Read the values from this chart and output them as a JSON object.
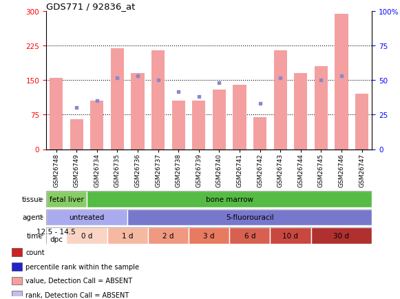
{
  "title": "GDS771 / 92836_at",
  "samples": [
    "GSM26748",
    "GSM26749",
    "GSM26734",
    "GSM26735",
    "GSM26736",
    "GSM26737",
    "GSM26738",
    "GSM26739",
    "GSM26740",
    "GSM26741",
    "GSM26742",
    "GSM26743",
    "GSM26744",
    "GSM26745",
    "GSM26746",
    "GSM26747"
  ],
  "bar_values": [
    155,
    65,
    105,
    220,
    165,
    215,
    105,
    105,
    130,
    140,
    70,
    215,
    165,
    180,
    295,
    120
  ],
  "dot_values": [
    null,
    90,
    105,
    155,
    160,
    150,
    125,
    115,
    145,
    null,
    100,
    155,
    null,
    150,
    160,
    null
  ],
  "bar_color": "#f4a0a0",
  "dot_color": "#8888cc",
  "ylim_left": [
    0,
    300
  ],
  "ylim_right": [
    0,
    100
  ],
  "yticks_left": [
    0,
    75,
    150,
    225,
    300
  ],
  "yticks_right": [
    0,
    25,
    50,
    75,
    100
  ],
  "ytick_labels_right": [
    "0",
    "25",
    "50",
    "75",
    "100%"
  ],
  "tissue_groups": [
    {
      "label": "fetal liver",
      "start": 0,
      "end": 2,
      "color": "#88cc66"
    },
    {
      "label": "bone marrow",
      "start": 2,
      "end": 16,
      "color": "#55bb44"
    }
  ],
  "agent_groups": [
    {
      "label": "untreated",
      "start": 0,
      "end": 4,
      "color": "#aaaaee"
    },
    {
      "label": "5-fluorouracil",
      "start": 4,
      "end": 16,
      "color": "#7777cc"
    }
  ],
  "time_groups": [
    {
      "label": "12.5 - 14.5\ndpc",
      "start": 0,
      "end": 1,
      "color": "#ffffff"
    },
    {
      "label": "0 d",
      "start": 1,
      "end": 3,
      "color": "#fad4c4"
    },
    {
      "label": "1 d",
      "start": 3,
      "end": 5,
      "color": "#f5b8a0"
    },
    {
      "label": "2 d",
      "start": 5,
      "end": 7,
      "color": "#f09880"
    },
    {
      "label": "3 d",
      "start": 7,
      "end": 9,
      "color": "#e87a60"
    },
    {
      "label": "6 d",
      "start": 9,
      "end": 11,
      "color": "#d86050"
    },
    {
      "label": "10 d",
      "start": 11,
      "end": 13,
      "color": "#c84840"
    },
    {
      "label": "30 d",
      "start": 13,
      "end": 16,
      "color": "#b03030"
    }
  ],
  "legend_items": [
    {
      "color": "#cc2222",
      "label": "count"
    },
    {
      "color": "#2222cc",
      "label": "percentile rank within the sample"
    },
    {
      "color": "#f4a0a0",
      "label": "value, Detection Call = ABSENT"
    },
    {
      "color": "#c0c0e8",
      "label": "rank, Detection Call = ABSENT"
    }
  ]
}
